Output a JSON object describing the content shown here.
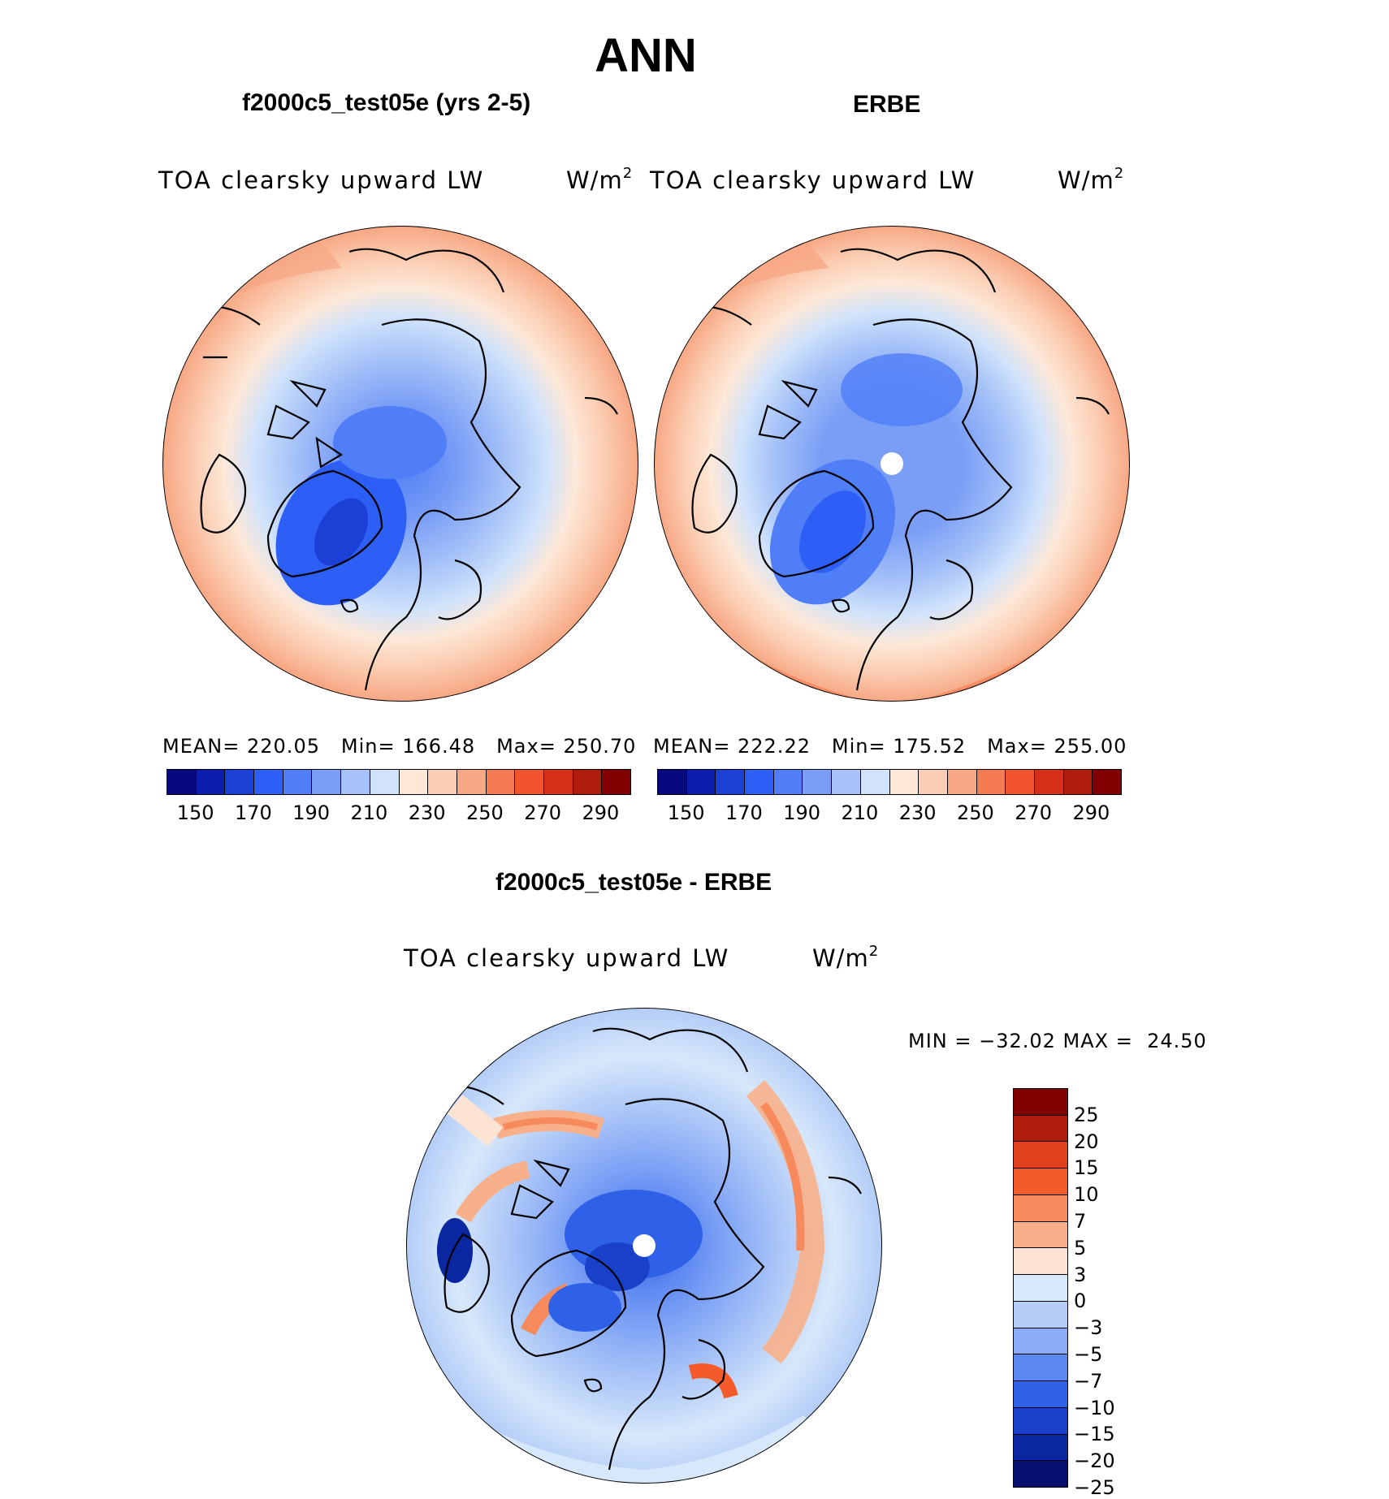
{
  "title": "ANN",
  "panels": [
    {
      "name": "model",
      "title": "f2000c5_test05e (yrs 2-5)",
      "variable": "TOA clearsky upward LW",
      "units_base": "W/m",
      "units_exp": "2",
      "stats": {
        "mean_label": "MEAN=",
        "mean": "220.05",
        "min_label": "Min=",
        "min": "166.48",
        "max_label": "Max=",
        "max": "250.70"
      }
    },
    {
      "name": "obs",
      "title": "ERBE",
      "variable": "TOA clearsky upward LW",
      "units_base": "W/m",
      "units_exp": "2",
      "stats": {
        "mean_label": "MEAN=",
        "mean": "222.22",
        "min_label": "Min=",
        "min": "175.52",
        "max_label": "Max=",
        "max": "255.00"
      }
    }
  ],
  "abs_colorbar": {
    "colors": [
      "#08087f",
      "#0c1eae",
      "#1c3fd6",
      "#2d5ef5",
      "#4f7ef7",
      "#7a9ef6",
      "#a6c2f8",
      "#d0e3fb",
      "#fde8d8",
      "#fbcdb2",
      "#f7a784",
      "#f57c52",
      "#f0532e",
      "#d7301a",
      "#b01c0c",
      "#820000"
    ],
    "ticks": [
      "150",
      "170",
      "190",
      "210",
      "230",
      "250",
      "270",
      "290"
    ]
  },
  "diff": {
    "title": "f2000c5_test05e - ERBE",
    "variable": "TOA clearsky upward LW",
    "units_base": "W/m",
    "units_exp": "2",
    "minmax": "MIN = −32.02 MAX =  24.50",
    "colorbar": {
      "colors": [
        "#820000",
        "#b01c0c",
        "#e0401c",
        "#f55a2a",
        "#f68a5c",
        "#f8b08a",
        "#fde4d2",
        "#d8e8fb",
        "#b4cdf8",
        "#8aacf6",
        "#5d88f2",
        "#2f60e8",
        "#1840c8",
        "#0a26a0",
        "#06106e"
      ],
      "labels": [
        "25",
        "20",
        "15",
        "10",
        "7",
        "5",
        "3",
        "0",
        "−3",
        "−5",
        "−7",
        "−10",
        "−15",
        "−20",
        "−25"
      ]
    }
  }
}
